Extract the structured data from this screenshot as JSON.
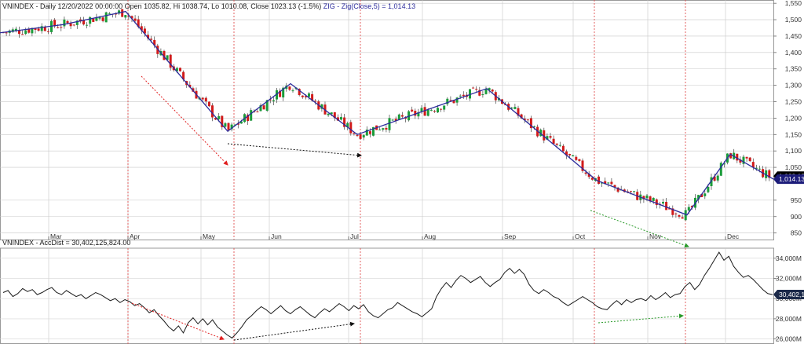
{
  "chart_data": [
    {
      "type": "candlestick",
      "header": {
        "symbol": "VNINDEX",
        "info": " - Daily 12/20/2022 00:00:00 Open 1035.82, Hi 1038.74, Lo 1010.08, Close 1023.13 (-1.5%)",
        "zig_label": " ZIG - Zig(Close,5) = 1,014.13"
      },
      "ylim": [
        830,
        1560
      ],
      "y_ticks": [
        {
          "v": 1550,
          "label": "1,550"
        },
        {
          "v": 1500,
          "label": "1,500"
        },
        {
          "v": 1450,
          "label": "1,450"
        },
        {
          "v": 1400,
          "label": "1,400"
        },
        {
          "v": 1350,
          "label": "1,350"
        },
        {
          "v": 1300,
          "label": "1,300"
        },
        {
          "v": 1250,
          "label": "1,250"
        },
        {
          "v": 1200,
          "label": "1,200"
        },
        {
          "v": 1150,
          "label": "1,150"
        },
        {
          "v": 1100,
          "label": "1,100"
        },
        {
          "v": 1050,
          "label": "1,050"
        },
        {
          "v": 950,
          "label": "950"
        },
        {
          "v": 900,
          "label": "900"
        },
        {
          "v": 850,
          "label": "850"
        }
      ],
      "months": [
        "Mar",
        "Apr",
        "May",
        "Jun",
        "Jul",
        "Aug",
        "Sep",
        "Oct",
        "Nov",
        "Dec"
      ],
      "last_close": {
        "value": 1023.13,
        "label": "1,023.13"
      },
      "zig_value": {
        "value": 1014.13,
        "label": "1,014.13"
      },
      "zigzag": [
        [
          0,
          1460
        ],
        [
          80,
          1485
        ],
        [
          160,
          1525
        ],
        [
          290,
          1160
        ],
        [
          370,
          1305
        ],
        [
          455,
          1150
        ],
        [
          620,
          1290
        ],
        [
          760,
          1010
        ],
        [
          875,
          905
        ],
        [
          930,
          1090
        ],
        [
          985,
          1014
        ]
      ],
      "colors": {
        "up": "#1a9c3a",
        "down": "#d11a1a",
        "zigzag": "#2b2b9c",
        "grid": "#c8c8c8",
        "divider": "#e05050",
        "badge_close": "#000000",
        "badge_zig": "#1c1c7a"
      }
    },
    {
      "type": "line",
      "header": {
        "symbol": "VNINDEX",
        "info": " - AccDist = 30,402,125,824.00"
      },
      "ylim": [
        25500000000,
        35000000000
      ],
      "y_ticks": [
        {
          "v": 34000000000,
          "label": "34,000M"
        },
        {
          "v": 32000000000,
          "label": "32,000M"
        },
        {
          "v": 30000000000,
          "label": "30,000M"
        },
        {
          "v": 28000000000,
          "label": "28,000M"
        },
        {
          "v": 26000000000,
          "label": "26,000M"
        }
      ],
      "last_value": {
        "value": 30402125824,
        "label": "30,402,1"
      },
      "series": {
        "values": [
          30.6,
          30.8,
          30.2,
          30.5,
          31.0,
          30.7,
          30.9,
          30.4,
          30.6,
          30.9,
          31.1,
          30.6,
          30.4,
          30.8,
          30.5,
          30.2,
          30.4,
          30.0,
          30.3,
          30.6,
          30.4,
          30.1,
          29.8,
          30.0,
          29.6,
          29.9,
          29.7,
          29.3,
          29.5,
          29.1,
          28.6,
          28.9,
          28.3,
          27.8,
          27.2,
          26.8,
          27.3,
          26.6,
          27.6,
          28.1,
          27.5,
          28.0,
          27.4,
          27.9,
          27.2,
          26.8,
          26.4,
          26.1,
          26.6,
          27.2,
          27.9,
          28.3,
          28.8,
          29.2,
          28.9,
          28.5,
          28.9,
          29.3,
          28.8,
          28.5,
          28.9,
          29.2,
          28.8,
          28.4,
          28.1,
          28.6,
          29.0,
          28.7,
          29.1,
          29.5,
          29.2,
          28.8,
          29.3,
          29.0,
          29.4,
          28.7,
          28.3,
          28.1,
          28.5,
          28.9,
          29.1,
          29.6,
          29.3,
          29.0,
          28.7,
          28.5,
          28.2,
          28.6,
          29.0,
          30.2,
          31.0,
          31.6,
          31.1,
          31.8,
          32.3,
          32.0,
          31.6,
          31.9,
          32.2,
          31.6,
          31.2,
          31.6,
          31.9,
          32.6,
          33.0,
          32.5,
          32.9,
          32.4,
          31.4,
          30.8,
          30.5,
          30.9,
          30.6,
          30.2,
          30.0,
          29.6,
          29.3,
          29.6,
          29.9,
          30.2,
          29.9,
          29.6,
          29.2,
          29.0,
          28.9,
          29.4,
          29.8,
          29.4,
          29.9,
          29.6,
          29.9,
          30.0,
          29.8,
          30.3,
          29.9,
          30.2,
          30.6,
          30.1,
          30.4,
          30.5,
          31.2,
          31.6,
          30.9,
          31.4,
          32.3,
          33.0,
          33.8,
          34.6,
          33.8,
          34.2,
          33.2,
          32.6,
          32.1,
          32.3,
          31.9,
          31.4,
          30.9,
          30.5,
          30.4
        ]
      },
      "colors": {
        "line": "#1a1a1a",
        "badge": "#1c2a4a"
      }
    }
  ]
}
